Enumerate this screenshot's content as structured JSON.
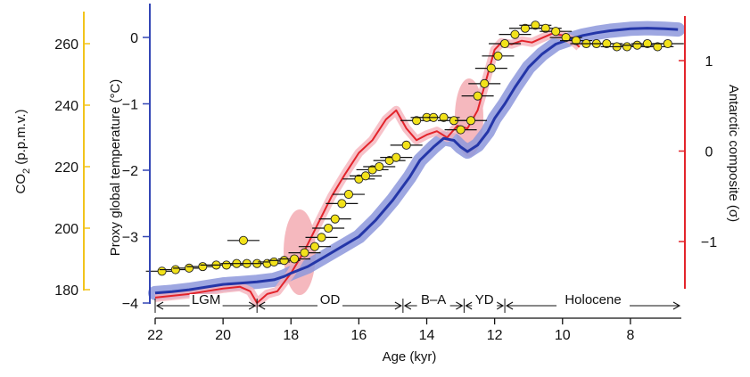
{
  "chart_data": {
    "type": "line",
    "xlabel": "Age (kyr)",
    "x_range": [
      22,
      6.5
    ],
    "x_ticks": [
      "22",
      "20",
      "18",
      "16",
      "14",
      "12",
      "10",
      "8"
    ],
    "axes": {
      "co2": {
        "label_main": "CO",
        "label_sub": "2",
        "label_tail": " (p.p.m.v.)",
        "range": [
          180,
          268
        ],
        "ticks": [
          "180",
          "200",
          "220",
          "240",
          "260"
        ],
        "color": "#f2c41c"
      },
      "temp": {
        "label": "Proxy global temperature (°C)",
        "range": [
          -4,
          0.4
        ],
        "ticks": [
          "0",
          "−1",
          "−2",
          "−3",
          "−4"
        ],
        "color": "#3346b5"
      },
      "antarctic": {
        "label": "Antarctic composite (σ)",
        "range": [
          -1.55,
          1.42
        ],
        "ticks": [
          "1",
          "0",
          "−1"
        ],
        "color": "#e3242b"
      }
    },
    "periods": [
      {
        "label": "LGM",
        "start": 22,
        "end": 19
      },
      {
        "label": "OD",
        "start": 19,
        "end": 14.7
      },
      {
        "label": "B–A",
        "start": 14.7,
        "end": 12.9
      },
      {
        "label": "YD",
        "start": 12.9,
        "end": 11.7
      },
      {
        "label": "Holocene",
        "start": 11.7,
        "end": 6.5
      }
    ],
    "series": [
      {
        "name": "Proxy global temperature",
        "axis": "temp",
        "color": "#2436a8",
        "points": [
          [
            22,
            -3.85
          ],
          [
            21.5,
            -3.83
          ],
          [
            21,
            -3.8
          ],
          [
            20.5,
            -3.76
          ],
          [
            20,
            -3.72
          ],
          [
            19.5,
            -3.7
          ],
          [
            19,
            -3.68
          ],
          [
            18.5,
            -3.65
          ],
          [
            18.2,
            -3.6
          ],
          [
            18,
            -3.55
          ],
          [
            17.5,
            -3.45
          ],
          [
            17,
            -3.3
          ],
          [
            16.5,
            -3.15
          ],
          [
            16,
            -3.0
          ],
          [
            15.5,
            -2.75
          ],
          [
            15,
            -2.45
          ],
          [
            14.5,
            -2.1
          ],
          [
            14.2,
            -1.85
          ],
          [
            13.8,
            -1.65
          ],
          [
            13.5,
            -1.52
          ],
          [
            13.2,
            -1.55
          ],
          [
            13.0,
            -1.65
          ],
          [
            12.8,
            -1.72
          ],
          [
            12.5,
            -1.62
          ],
          [
            12.2,
            -1.42
          ],
          [
            12.0,
            -1.22
          ],
          [
            11.7,
            -1.0
          ],
          [
            11.4,
            -0.75
          ],
          [
            11.0,
            -0.45
          ],
          [
            10.6,
            -0.25
          ],
          [
            10.2,
            -0.1
          ],
          [
            9.8,
            -0.03
          ],
          [
            9.4,
            0.03
          ],
          [
            9.0,
            0.07
          ],
          [
            8.6,
            0.1
          ],
          [
            8.0,
            0.13
          ],
          [
            7.5,
            0.14
          ],
          [
            7.0,
            0.13
          ],
          [
            6.6,
            0.12
          ]
        ]
      },
      {
        "name": "Antarctic composite",
        "axis": "antarctic",
        "color": "#e3242b",
        "points": [
          [
            22,
            -1.62
          ],
          [
            21.5,
            -1.6
          ],
          [
            21,
            -1.58
          ],
          [
            20.5,
            -1.55
          ],
          [
            20,
            -1.52
          ],
          [
            19.5,
            -1.5
          ],
          [
            19.2,
            -1.55
          ],
          [
            19.0,
            -1.68
          ],
          [
            18.7,
            -1.58
          ],
          [
            18.4,
            -1.55
          ],
          [
            18.2,
            -1.45
          ],
          [
            18,
            -1.35
          ],
          [
            17.6,
            -1.1
          ],
          [
            17.2,
            -0.8
          ],
          [
            16.8,
            -0.5
          ],
          [
            16.4,
            -0.25
          ],
          [
            16.0,
            -0.02
          ],
          [
            15.6,
            0.12
          ],
          [
            15.2,
            0.35
          ],
          [
            14.9,
            0.45
          ],
          [
            14.6,
            0.25
          ],
          [
            14.3,
            0.12
          ],
          [
            14.0,
            0.18
          ],
          [
            13.7,
            0.22
          ],
          [
            13.4,
            0.15
          ],
          [
            13.1,
            0.28
          ],
          [
            12.8,
            0.25
          ],
          [
            12.5,
            0.45
          ],
          [
            12.2,
            0.85
          ],
          [
            12.0,
            1.12
          ],
          [
            11.8,
            1.2
          ],
          [
            11.5,
            1.18
          ],
          [
            11.2,
            1.22
          ],
          [
            10.9,
            1.2
          ],
          [
            10.6,
            1.25
          ],
          [
            10.3,
            1.3
          ],
          [
            10.0,
            1.28
          ],
          [
            9.7,
            1.22
          ],
          [
            9.5,
            1.15
          ]
        ]
      },
      {
        "name": "CO2",
        "axis": "co2",
        "color": "#f2e21a",
        "points": [
          [
            21.8,
            186
          ],
          [
            21.4,
            186.5
          ],
          [
            21.0,
            187
          ],
          [
            20.6,
            187.5
          ],
          [
            20.2,
            188
          ],
          [
            19.9,
            188
          ],
          [
            19.6,
            188.5
          ],
          [
            19.3,
            188.5
          ],
          [
            19.4,
            196
          ],
          [
            19.0,
            188.5
          ],
          [
            18.7,
            188.5
          ],
          [
            18.5,
            189
          ],
          [
            18.2,
            189.5
          ],
          [
            17.9,
            190
          ],
          [
            17.6,
            192
          ],
          [
            17.3,
            194
          ],
          [
            17.1,
            197
          ],
          [
            16.9,
            200
          ],
          [
            16.7,
            203
          ],
          [
            16.5,
            208
          ],
          [
            16.3,
            211
          ],
          [
            16.0,
            216
          ],
          [
            15.8,
            217
          ],
          [
            15.6,
            219
          ],
          [
            15.4,
            220
          ],
          [
            15.1,
            222
          ],
          [
            14.9,
            223
          ],
          [
            14.6,
            227
          ],
          [
            14.3,
            235
          ],
          [
            14.0,
            236
          ],
          [
            13.8,
            236
          ],
          [
            13.5,
            236
          ],
          [
            13.2,
            235
          ],
          [
            13.0,
            232
          ],
          [
            12.7,
            235
          ],
          [
            12.5,
            243
          ],
          [
            12.3,
            247
          ],
          [
            12.1,
            252
          ],
          [
            11.9,
            256
          ],
          [
            11.7,
            260
          ],
          [
            11.4,
            263
          ],
          [
            11.1,
            265
          ],
          [
            10.8,
            266
          ],
          [
            10.5,
            265
          ],
          [
            10.2,
            264
          ],
          [
            9.9,
            262
          ],
          [
            9.6,
            261
          ],
          [
            9.3,
            260
          ],
          [
            9.0,
            260
          ],
          [
            8.7,
            260
          ],
          [
            8.4,
            259
          ],
          [
            8.1,
            259
          ],
          [
            7.8,
            259.5
          ],
          [
            7.5,
            260
          ],
          [
            7.2,
            259
          ],
          [
            6.9,
            260
          ]
        ]
      }
    ]
  }
}
